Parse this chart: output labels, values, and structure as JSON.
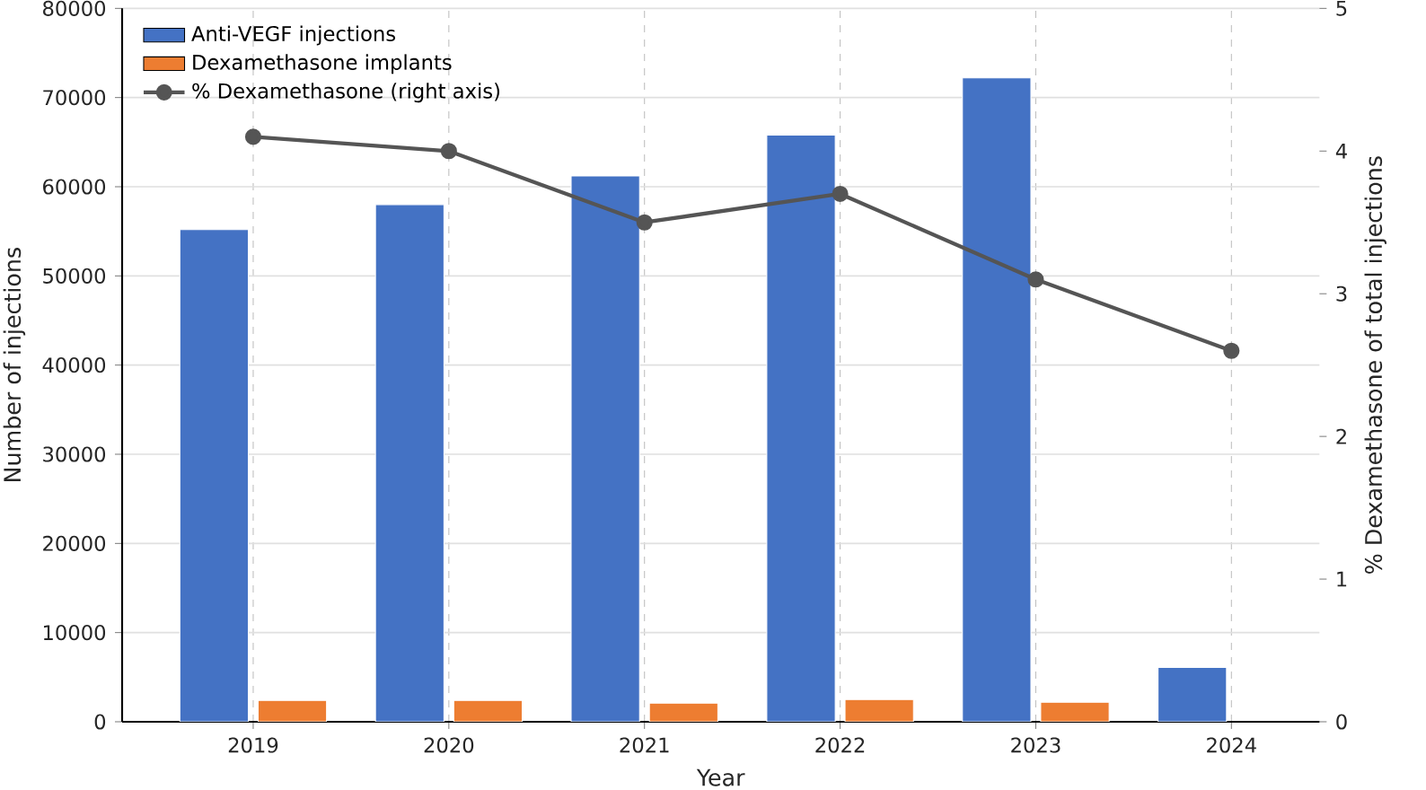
{
  "chart_data": {
    "type": "bar",
    "xlabel": "Year",
    "ylabel": "Number of injections",
    "y2label": "% Dexamethasone of total injections",
    "categories": [
      "2019",
      "2020",
      "2021",
      "2022",
      "2023",
      "2024"
    ],
    "series": [
      {
        "name": "Anti-VEGF injections",
        "color": "#4472c4",
        "values": [
          55200,
          58000,
          61200,
          65800,
          72200,
          6100
        ]
      },
      {
        "name": "Dexamethasone implants",
        "color": "#ed7d31",
        "values": [
          2400,
          2400,
          2100,
          2500,
          2200,
          null
        ]
      },
      {
        "name": "% Dexamethasone (right axis)",
        "color": "#555555",
        "type": "line",
        "axis": "y2",
        "marker": "circle",
        "values": [
          4.1,
          4.0,
          3.5,
          3.7,
          3.1,
          2.6
        ]
      }
    ],
    "ylim": [
      0,
      80000
    ],
    "yticks": [
      0,
      10000,
      20000,
      30000,
      40000,
      50000,
      60000,
      70000,
      80000
    ],
    "y2lim": [
      0,
      5
    ],
    "y2ticks": [
      0,
      1,
      2,
      3,
      4,
      5
    ],
    "grid": true,
    "legend": "top left"
  }
}
